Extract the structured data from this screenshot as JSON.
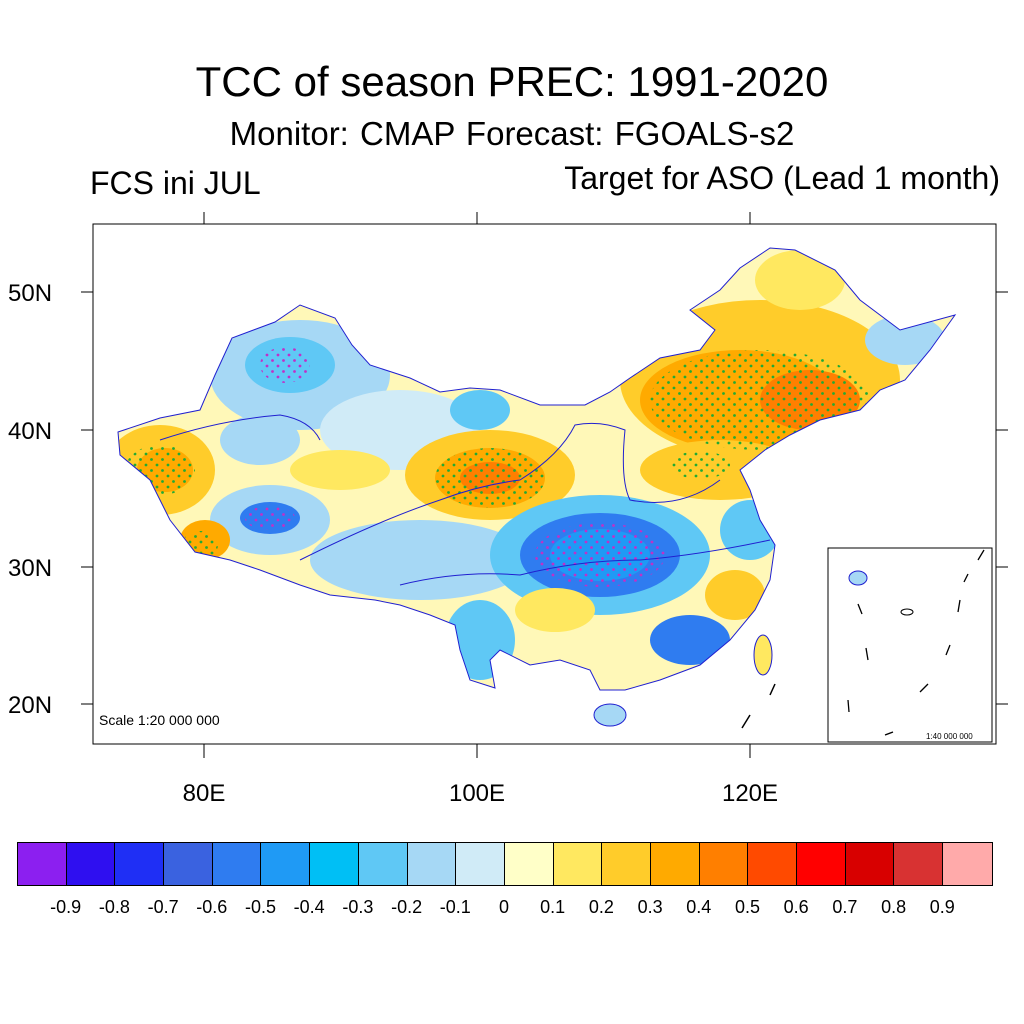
{
  "title": "TCC of season PREC: 1991-2020",
  "subtitle": "Monitor: CMAP   Forecast: FGOALS-s2",
  "left_label": "FCS ini JUL",
  "right_label": "Target for ASO (Lead 1 month)",
  "map": {
    "lat_ticks": [
      "50N",
      "40N",
      "30N",
      "20N"
    ],
    "lon_ticks": [
      "80E",
      "100E",
      "120E"
    ],
    "scale_note": "Scale 1:20 000 000",
    "inset_scale_note": "1:40 000 000"
  },
  "colorbar": {
    "colors": [
      "#8c1ff0",
      "#2f0ff0",
      "#1f2ff5",
      "#3a62e0",
      "#2f7cf0",
      "#1f9af5",
      "#00bff5",
      "#5fc8f5",
      "#a6d8f5",
      "#d0ebf7",
      "#ffffc8",
      "#ffe860",
      "#ffcc2a",
      "#ffaa00",
      "#ff7f00",
      "#ff4a00",
      "#ff0000",
      "#d80000",
      "#d83232",
      "#ffaaaa"
    ],
    "labels": [
      "-0.9",
      "-0.8",
      "-0.7",
      "-0.6",
      "-0.5",
      "-0.4",
      "-0.3",
      "-0.2",
      "-0.1",
      "0",
      "0.1",
      "0.2",
      "0.3",
      "0.4",
      "0.5",
      "0.6",
      "0.7",
      "0.8",
      "0.9"
    ]
  }
}
